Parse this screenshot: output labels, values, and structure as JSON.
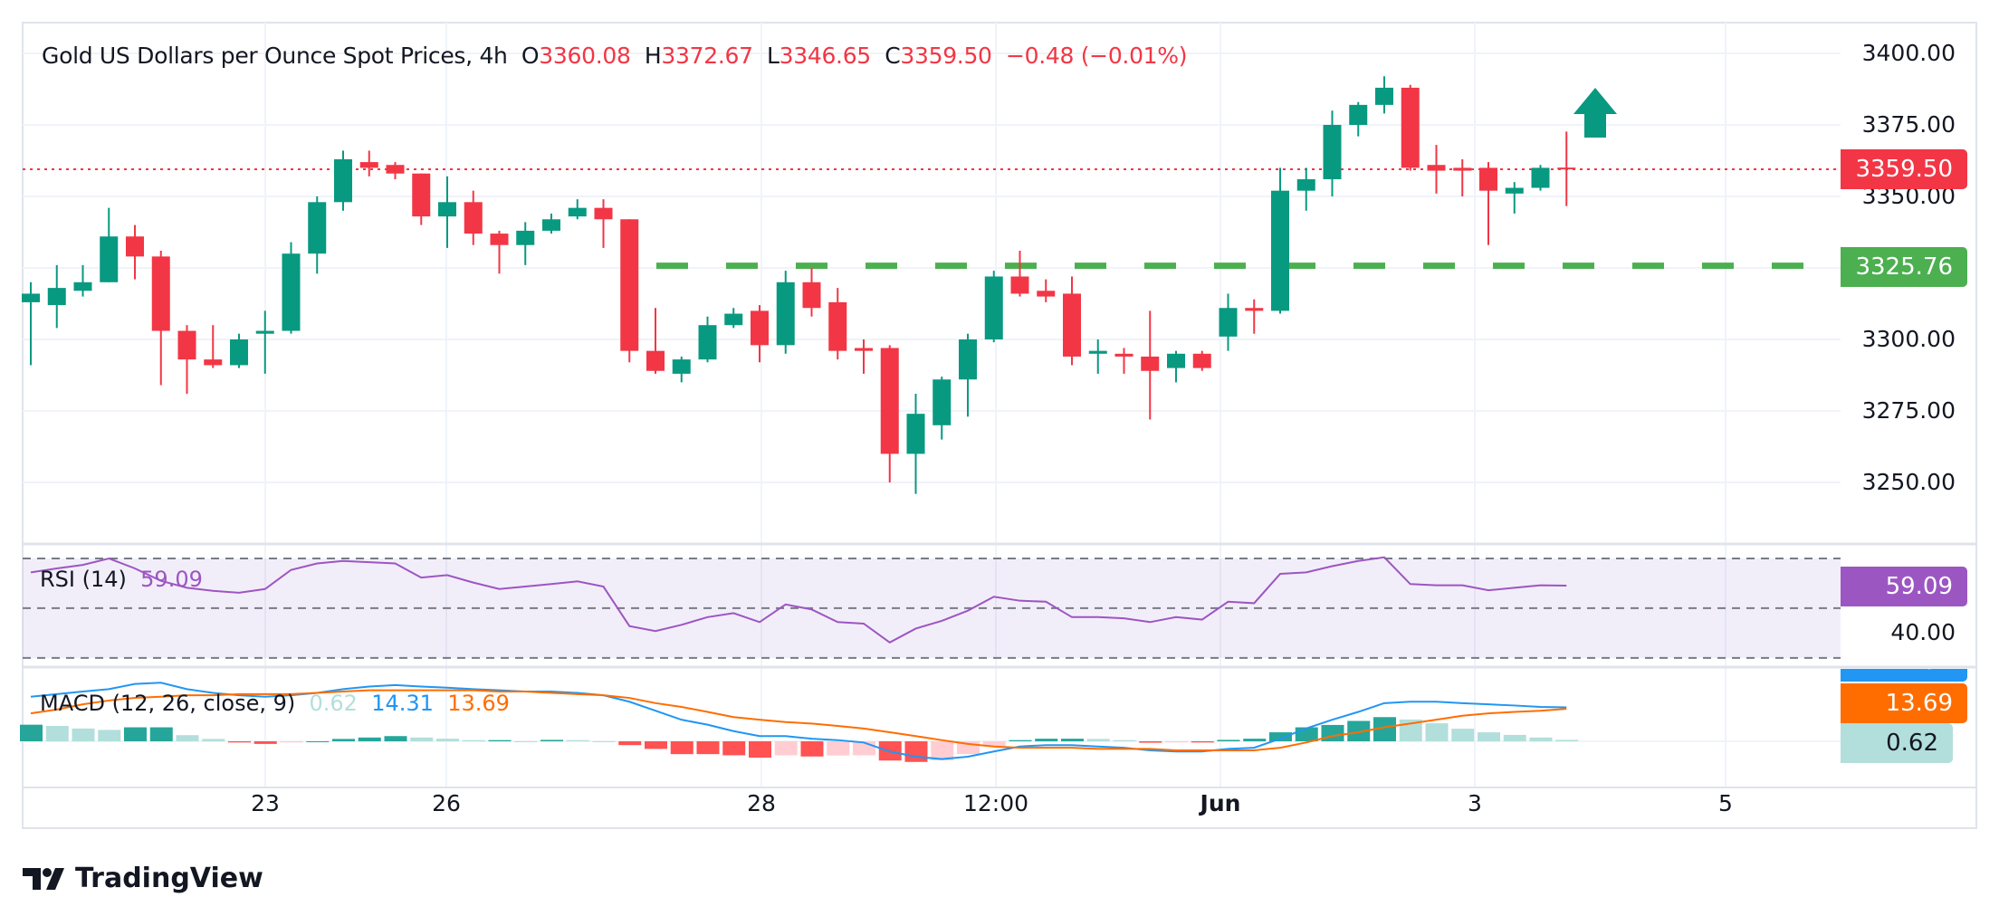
{
  "header": {
    "symbol": "Gold US Dollars per Ounce Spot Prices, 4h",
    "o_label": "O",
    "o": "3360.08",
    "h_label": "H",
    "h": "3372.67",
    "l_label": "L",
    "l": "3346.65",
    "c_label": "C",
    "c": "3359.50",
    "change": "−0.48 (−0.01%)"
  },
  "price_axis": [
    "3400.00",
    "3375.00",
    "3350.00",
    "3300.00",
    "3275.00",
    "3250.00"
  ],
  "price_labels": {
    "last": "3359.50",
    "level": "3325.76"
  },
  "time_axis": [
    "23",
    "26",
    "28",
    "12:00",
    "Jun",
    "3",
    "5"
  ],
  "rsi": {
    "label": "RSI (14)",
    "value": "59.09",
    "axis_tick": "40.00"
  },
  "macd": {
    "label": "MACD (12, 26, close, 9)",
    "hist": "0.62",
    "macd": "14.31",
    "signal": "13.69"
  },
  "brand": "TradingView",
  "colors": {
    "up": "#089981",
    "down": "#f23645",
    "level": "#4caf50",
    "rsi": "#9c56c2",
    "macd": "#2196f3",
    "signal": "#ff6d00",
    "hist_up": "#26a69a",
    "hist_up_fade": "#b2dfdb",
    "hist_down": "#ff5252",
    "hist_down_fade": "#ffcdd2"
  },
  "chart_data": {
    "type": "candlestick",
    "timeframe": "4h",
    "ohlc_note_fields": [
      "open",
      "high",
      "low",
      "close"
    ],
    "candles": [
      [
        3313,
        3320,
        3291,
        3316
      ],
      [
        3312,
        3326,
        3304,
        3318
      ],
      [
        3317,
        3326,
        3315,
        3320
      ],
      [
        3320,
        3346,
        3320,
        3336
      ],
      [
        3336,
        3340,
        3321,
        3329
      ],
      [
        3329,
        3331,
        3284,
        3303
      ],
      [
        3303,
        3305,
        3281,
        3293
      ],
      [
        3293,
        3305,
        3290,
        3291
      ],
      [
        3291,
        3302,
        3290,
        3300
      ],
      [
        3302,
        3310,
        3288,
        3303
      ],
      [
        3303,
        3334,
        3302,
        3330
      ],
      [
        3330,
        3350,
        3323,
        3348
      ],
      [
        3348,
        3366,
        3345,
        3363
      ],
      [
        3362,
        3366,
        3357,
        3360
      ],
      [
        3361,
        3362,
        3356,
        3358
      ],
      [
        3358,
        3358,
        3340,
        3343
      ],
      [
        3343,
        3357,
        3332,
        3348
      ],
      [
        3348,
        3352,
        3333,
        3337
      ],
      [
        3337,
        3338,
        3323,
        3333
      ],
      [
        3333,
        3341,
        3326,
        3338
      ],
      [
        3338,
        3344,
        3337,
        3342
      ],
      [
        3343,
        3349,
        3342,
        3346
      ],
      [
        3346,
        3349,
        3332,
        3342
      ],
      [
        3342,
        3342,
        3292,
        3296
      ],
      [
        3296,
        3311,
        3288,
        3289
      ],
      [
        3288,
        3294,
        3285,
        3293
      ],
      [
        3293,
        3308,
        3292,
        3305
      ],
      [
        3305,
        3311,
        3304,
        3309
      ],
      [
        3310,
        3312,
        3292,
        3298
      ],
      [
        3298,
        3324,
        3295,
        3320
      ],
      [
        3320,
        3325,
        3308,
        3311
      ],
      [
        3313,
        3318,
        3293,
        3296
      ],
      [
        3297,
        3300,
        3288,
        3296
      ],
      [
        3297,
        3298,
        3250,
        3260
      ],
      [
        3260,
        3281,
        3246,
        3274
      ],
      [
        3270,
        3287,
        3265,
        3286
      ],
      [
        3286,
        3302,
        3273,
        3300
      ],
      [
        3300,
        3324,
        3299,
        3322
      ],
      [
        3322,
        3331,
        3315,
        3316
      ],
      [
        3317,
        3321,
        3313,
        3315
      ],
      [
        3316,
        3322,
        3291,
        3294
      ],
      [
        3295,
        3300,
        3288,
        3296
      ],
      [
        3295,
        3297,
        3288,
        3294
      ],
      [
        3294,
        3310,
        3272,
        3289
      ],
      [
        3290,
        3296,
        3285,
        3295
      ],
      [
        3295,
        3296,
        3289,
        3290
      ],
      [
        3301,
        3316,
        3296,
        3311
      ],
      [
        3311,
        3314,
        3302,
        3310
      ],
      [
        3310,
        3360,
        3309,
        3352
      ],
      [
        3352,
        3360,
        3345,
        3356
      ],
      [
        3356,
        3380,
        3350,
        3375
      ],
      [
        3375,
        3383,
        3371,
        3382
      ],
      [
        3382,
        3392,
        3379,
        3388
      ],
      [
        3388,
        3389,
        3359,
        3360
      ],
      [
        3361,
        3368,
        3351,
        3359
      ],
      [
        3360,
        3363,
        3350,
        3359
      ],
      [
        3360,
        3362,
        3333,
        3352
      ],
      [
        3351,
        3355,
        3344,
        3353
      ],
      [
        3353,
        3361,
        3352,
        3360
      ],
      [
        3360.08,
        3372.67,
        3346.65,
        3359.5
      ]
    ],
    "last_price": 3359.5,
    "horizontal_level": 3325.76,
    "price_ylim": [
      3230,
      3400
    ],
    "rsi_bands": [
      70,
      50,
      30
    ],
    "rsi": [
      64.4,
      66,
      67.4,
      70,
      66,
      61,
      58.2,
      57,
      56.2,
      57.7,
      65.4,
      68,
      69,
      68.5,
      68,
      62.3,
      63.3,
      60.3,
      57.7,
      58.7,
      59.7,
      60.8,
      58.7,
      42.8,
      40.8,
      43.3,
      46.4,
      48,
      44.4,
      51.5,
      49.5,
      44.4,
      43.8,
      36.2,
      41.8,
      44.9,
      49,
      54.6,
      53,
      52.6,
      46.4,
      46.4,
      45.9,
      44.4,
      46.4,
      45.4,
      52.6,
      52,
      63.8,
      64.4,
      66.9,
      69,
      70.5,
      59.7,
      59.2,
      59.2,
      57.2,
      58.2,
      59.2,
      59.09
    ],
    "macd_line": [
      18.8,
      19.9,
      21,
      22,
      24.2,
      24.7,
      22,
      20.4,
      19.4,
      18.8,
      19.4,
      20.4,
      22,
      23.1,
      23.7,
      23.1,
      22.6,
      22,
      21.5,
      21,
      21,
      20.4,
      19.4,
      16.7,
      12.9,
      9.1,
      7,
      4.3,
      2.2,
      2.2,
      1.1,
      0.5,
      -0.5,
      -4.3,
      -6.5,
      -7.5,
      -6.5,
      -4.3,
      -2.2,
      -1.6,
      -1.6,
      -2.2,
      -2.7,
      -3.8,
      -4.3,
      -4.3,
      -3.2,
      -2.7,
      1.1,
      5.4,
      9.1,
      12.4,
      16.1,
      16.7,
      16.7,
      16.1,
      15.6,
      15.1,
      14.5,
      14.31
    ],
    "signal_line": [
      11.8,
      13.4,
      15.6,
      17.2,
      18.3,
      18.8,
      19.4,
      19.4,
      19.9,
      19.9,
      19.9,
      20.4,
      21,
      21.5,
      21.5,
      21.5,
      21.5,
      21.5,
      21,
      21,
      20.4,
      19.9,
      19.4,
      18.3,
      16.1,
      14.5,
      12.4,
      10.2,
      9.1,
      8.1,
      7.5,
      6.5,
      5.4,
      3.8,
      2.2,
      0.5,
      -1.1,
      -2.2,
      -2.7,
      -2.7,
      -2.7,
      -3.2,
      -3.2,
      -3.2,
      -3.8,
      -3.8,
      -3.8,
      -3.8,
      -2.7,
      -0.5,
      2.2,
      3.8,
      5.9,
      7.5,
      9.1,
      10.8,
      11.8,
      12.4,
      12.9,
      13.69
    ]
  }
}
